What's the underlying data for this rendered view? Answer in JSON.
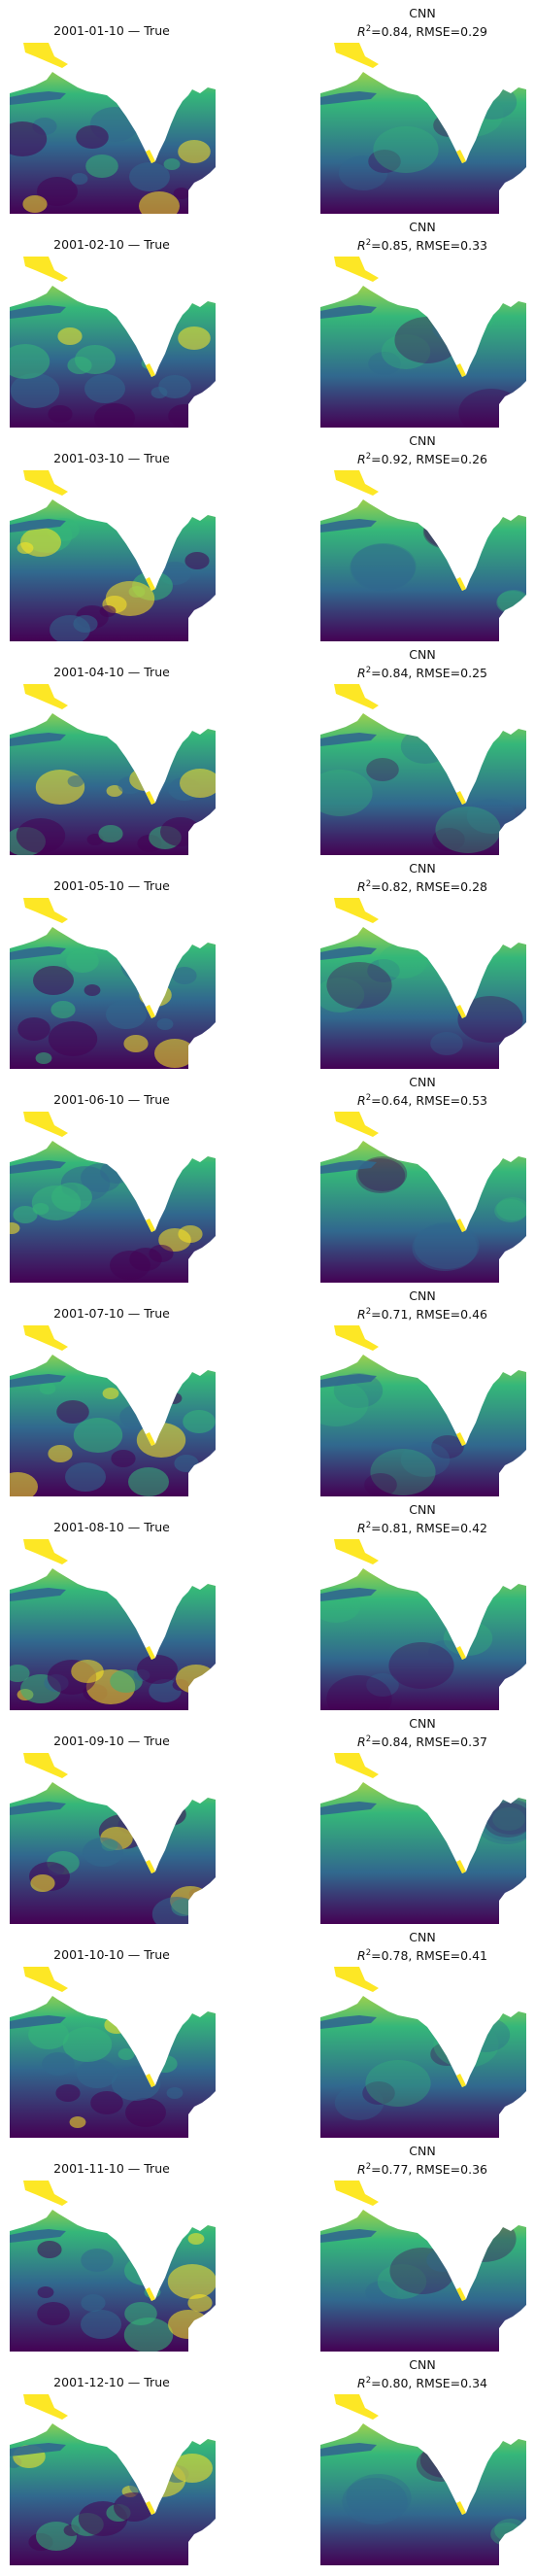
{
  "panels": [
    {
      "date_label": "2001-01-10 — True",
      "model": "CNN",
      "r2_label": "R",
      "metrics": "=0.84, RMSE=0.29"
    },
    {
      "date_label": "2001-02-10 — True",
      "model": "CNN",
      "r2_label": "R",
      "metrics": "=0.85, RMSE=0.33"
    },
    {
      "date_label": "2001-03-10 — True",
      "model": "CNN",
      "r2_label": "R",
      "metrics": "=0.92, RMSE=0.26"
    },
    {
      "date_label": "2001-04-10 — True",
      "model": "CNN",
      "r2_label": "R",
      "metrics": "=0.84, RMSE=0.25"
    },
    {
      "date_label": "2001-05-10 — True",
      "model": "CNN",
      "r2_label": "R",
      "metrics": "=0.82, RMSE=0.28"
    },
    {
      "date_label": "2001-06-10 — True",
      "model": "CNN",
      "r2_label": "R",
      "metrics": "=0.64, RMSE=0.53"
    },
    {
      "date_label": "2001-07-10 — True",
      "model": "CNN",
      "r2_label": "R",
      "metrics": "=0.71, RMSE=0.46"
    },
    {
      "date_label": "2001-08-10 — True",
      "model": "CNN",
      "r2_label": "R",
      "metrics": "=0.81, RMSE=0.42"
    },
    {
      "date_label": "2001-09-10 — True",
      "model": "CNN",
      "r2_label": "R",
      "metrics": "=0.84, RMSE=0.37"
    },
    {
      "date_label": "2001-10-10 — True",
      "model": "CNN",
      "r2_label": "R",
      "metrics": "=0.78, RMSE=0.41"
    },
    {
      "date_label": "2001-11-10 — True",
      "model": "CNN",
      "r2_label": "R",
      "metrics": "=0.77, RMSE=0.36"
    },
    {
      "date_label": "2001-12-10 — True",
      "model": "CNN",
      "r2_label": "R",
      "metrics": "=0.80, RMSE=0.34"
    }
  ],
  "sup_two": "2",
  "colors": {
    "ocean_low": "#440154",
    "ocean_mid": "#31688e",
    "ocean_green": "#35b779",
    "ocean_high": "#fde725",
    "land": "#ffffff"
  }
}
